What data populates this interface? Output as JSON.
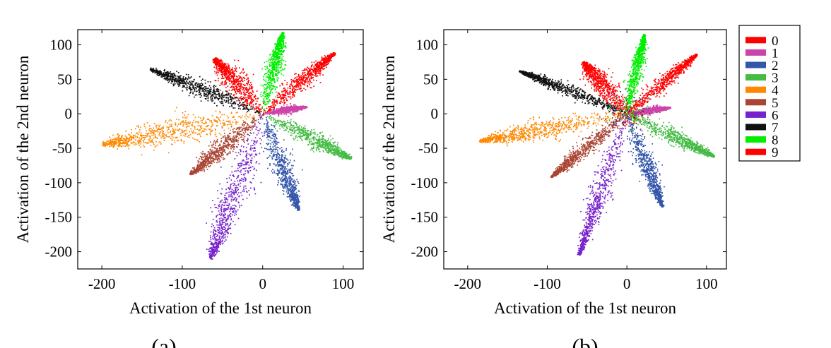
{
  "figure": {
    "panel_labels": [
      "(a)",
      "(b)"
    ]
  },
  "legend": {
    "title": "",
    "entries": [
      {
        "label": "0",
        "color": "#ff0000"
      },
      {
        "label": "1",
        "color": "#cc44aa"
      },
      {
        "label": "2",
        "color": "#3355aa"
      },
      {
        "label": "3",
        "color": "#44bb44"
      },
      {
        "label": "4",
        "color": "#ff8800"
      },
      {
        "label": "5",
        "color": "#aa4433"
      },
      {
        "label": "6",
        "color": "#7722cc"
      },
      {
        "label": "7",
        "color": "#111111"
      },
      {
        "label": "8",
        "color": "#00ee00"
      },
      {
        "label": "9",
        "color": "#ff0000"
      }
    ]
  },
  "chart_data": [
    {
      "type": "scatter",
      "title": "",
      "panel_label": "(a)",
      "xlabel": "Activation of the 1st neuron",
      "ylabel": "Activation of the 2nd neuron",
      "xlim": [
        -230,
        125
      ],
      "ylim": [
        -225,
        122
      ],
      "xticks": [
        -200,
        -100,
        0,
        100
      ],
      "yticks": [
        -200,
        -150,
        -100,
        -50,
        0,
        50,
        100
      ],
      "grid": false,
      "legend_position": "right",
      "series": [
        {
          "name": "0",
          "color": "#ff0000",
          "center": [
            -35,
            50
          ],
          "endpoint": [
            -60,
            80
          ],
          "halfwidth": 13
        },
        {
          "name": "1",
          "color": "#cc44aa",
          "center": [
            30,
            5
          ],
          "endpoint": [
            55,
            10
          ],
          "halfwidth": 4
        },
        {
          "name": "2",
          "color": "#3355aa",
          "center": [
            25,
            -70
          ],
          "endpoint": [
            45,
            -140
          ],
          "halfwidth": 10
        },
        {
          "name": "3",
          "color": "#44bb44",
          "center": [
            60,
            -40
          ],
          "endpoint": [
            110,
            -65
          ],
          "halfwidth": 10
        },
        {
          "name": "4",
          "color": "#ff8800",
          "center": [
            -100,
            -25
          ],
          "endpoint": [
            -200,
            -45
          ],
          "halfwidth": 16
        },
        {
          "name": "5",
          "color": "#aa4433",
          "center": [
            -45,
            -45
          ],
          "endpoint": [
            -90,
            -88
          ],
          "halfwidth": 10
        },
        {
          "name": "6",
          "color": "#7722cc",
          "center": [
            -35,
            -110
          ],
          "endpoint": [
            -65,
            -210
          ],
          "halfwidth": 15
        },
        {
          "name": "7",
          "color": "#111111",
          "center": [
            -70,
            35
          ],
          "endpoint": [
            -140,
            65
          ],
          "halfwidth": 9
        },
        {
          "name": "8",
          "color": "#00ee00",
          "center": [
            12,
            60
          ],
          "endpoint": [
            25,
            118
          ],
          "halfwidth": 8
        },
        {
          "name": "9",
          "color": "#ff0000",
          "center": [
            45,
            45
          ],
          "endpoint": [
            90,
            88
          ],
          "halfwidth": 9
        }
      ]
    },
    {
      "type": "scatter",
      "title": "",
      "panel_label": "(b)",
      "xlabel": "Activation of the 1st neuron",
      "ylabel": "Activation of the 2nd neuron",
      "xlim": [
        -230,
        125
      ],
      "ylim": [
        -225,
        122
      ],
      "xticks": [
        -200,
        -100,
        0,
        100
      ],
      "yticks": [
        -200,
        -150,
        -100,
        -50,
        0,
        50,
        100
      ],
      "grid": false,
      "legend_position": "right",
      "series": [
        {
          "name": "0",
          "color": "#ff0000",
          "center": [
            -30,
            45
          ],
          "endpoint": [
            -55,
            75
          ],
          "halfwidth": 12
        },
        {
          "name": "1",
          "color": "#cc44aa",
          "center": [
            28,
            5
          ],
          "endpoint": [
            55,
            9
          ],
          "halfwidth": 4
        },
        {
          "name": "2",
          "color": "#3355aa",
          "center": [
            25,
            -70
          ],
          "endpoint": [
            45,
            -135
          ],
          "halfwidth": 9
        },
        {
          "name": "3",
          "color": "#44bb44",
          "center": [
            55,
            -35
          ],
          "endpoint": [
            110,
            -62
          ],
          "halfwidth": 9
        },
        {
          "name": "4",
          "color": "#ff8800",
          "center": [
            -90,
            -20
          ],
          "endpoint": [
            -185,
            -40
          ],
          "halfwidth": 12
        },
        {
          "name": "5",
          "color": "#aa4433",
          "center": [
            -45,
            -45
          ],
          "endpoint": [
            -95,
            -92
          ],
          "halfwidth": 8
        },
        {
          "name": "6",
          "color": "#7722cc",
          "center": [
            -30,
            -105
          ],
          "endpoint": [
            -60,
            -205
          ],
          "halfwidth": 10
        },
        {
          "name": "7",
          "color": "#111111",
          "center": [
            -65,
            30
          ],
          "endpoint": [
            -135,
            62
          ],
          "halfwidth": 7
        },
        {
          "name": "8",
          "color": "#00ee00",
          "center": [
            10,
            60
          ],
          "endpoint": [
            22,
            115
          ],
          "halfwidth": 7
        },
        {
          "name": "9",
          "color": "#ff0000",
          "center": [
            42,
            42
          ],
          "endpoint": [
            88,
            86
          ],
          "halfwidth": 8
        }
      ]
    }
  ]
}
